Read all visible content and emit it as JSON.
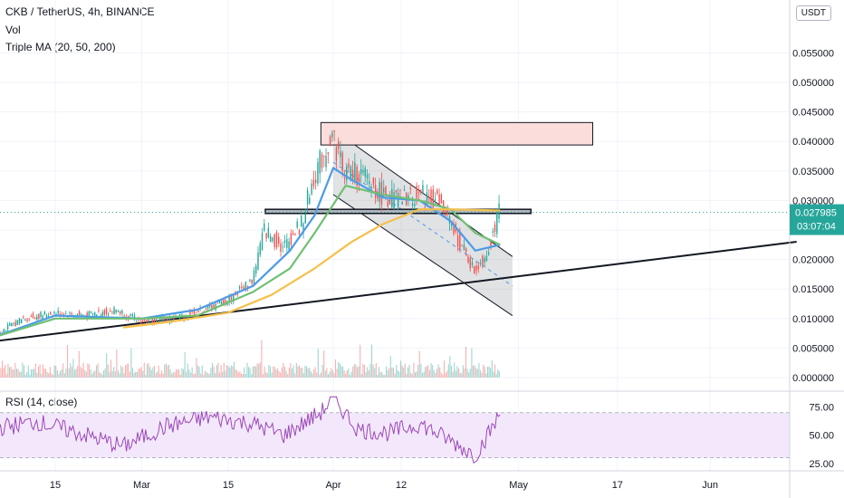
{
  "header": {
    "symbol_line": "CKB / TetherUS, 4h, BINANCE",
    "vol_label": "Vol",
    "ma_label": "Triple MA (20, 50, 200)"
  },
  "currency_button": "USDT",
  "price_badge": {
    "price": "0.027985",
    "countdown": "03:07:04"
  },
  "rsi_label": "RSI (14, close)",
  "colors": {
    "up": "#26a69a",
    "down": "#ef5350",
    "ma20": "#4c9be8",
    "ma50": "#6fbf73",
    "ma200": "#f5c04a",
    "rsi": "#9c47b8",
    "rsi_band": "#f3e8fb",
    "resistance": "#fbdedc"
  },
  "chart_data": [
    {
      "type": "line",
      "title": "CKB / TetherUS, 4h, BINANCE",
      "x_axis_labels": [
        "15",
        "Mar",
        "15",
        "Apr",
        "12",
        "May",
        "17",
        "Jun"
      ],
      "y_ticks": [
        "0.000000",
        "0.005000",
        "0.010000",
        "0.015000",
        "0.020000",
        "0.025000",
        "0.030000",
        "0.035000",
        "0.040000",
        "0.045000",
        "0.050000",
        "0.055000"
      ],
      "ylim": [
        0,
        0.057
      ],
      "last_price": 0.027985,
      "series": [
        {
          "name": "Price",
          "x": [
            "Feb 4",
            "Feb 10",
            "Feb 15",
            "Feb 20",
            "Feb 25",
            "Mar 1",
            "Mar 6",
            "Mar 10",
            "Mar 15",
            "Mar 19",
            "Mar 21",
            "Mar 24",
            "Mar 27",
            "Mar 29",
            "Apr 1",
            "Apr 3",
            "Apr 6",
            "Apr 9",
            "Apr 12",
            "Apr 15",
            "Apr 18",
            "Apr 20",
            "Apr 22",
            "Apr 24",
            "Apr 26",
            "Apr 28"
          ],
          "values": [
            0.0065,
            0.01,
            0.011,
            0.0105,
            0.0115,
            0.0095,
            0.01,
            0.011,
            0.013,
            0.0165,
            0.025,
            0.022,
            0.026,
            0.034,
            0.041,
            0.035,
            0.034,
            0.031,
            0.03,
            0.031,
            0.03,
            0.026,
            0.022,
            0.018,
            0.021,
            0.028
          ]
        },
        {
          "name": "MA20",
          "x": [
            "Feb 4",
            "Feb 15",
            "Mar 1",
            "Mar 10",
            "Mar 19",
            "Mar 25",
            "Mar 29",
            "Apr 1",
            "Apr 4",
            "Apr 9",
            "Apr 15",
            "Apr 20",
            "Apr 24",
            "Apr 28"
          ],
          "values": [
            0.0065,
            0.0105,
            0.01,
            0.0115,
            0.0155,
            0.0215,
            0.0275,
            0.0355,
            0.0335,
            0.0305,
            0.03,
            0.0265,
            0.0215,
            0.0225
          ]
        },
        {
          "name": "MA50",
          "x": [
            "Feb 4",
            "Feb 15",
            "Mar 1",
            "Mar 10",
            "Mar 19",
            "Mar 25",
            "Mar 29",
            "Apr 3",
            "Apr 9",
            "Apr 15",
            "Apr 20",
            "Apr 24",
            "Apr 28"
          ],
          "values": [
            0.0065,
            0.01,
            0.01,
            0.0105,
            0.0145,
            0.0185,
            0.0245,
            0.0325,
            0.031,
            0.03,
            0.0285,
            0.0245,
            0.0225
          ]
        },
        {
          "name": "MA200",
          "x": [
            "Feb 26",
            "Mar 6",
            "Mar 15",
            "Mar 22",
            "Mar 29",
            "Apr 4",
            "Apr 9",
            "Apr 15",
            "Apr 20",
            "Apr 28"
          ],
          "values": [
            0.0085,
            0.0095,
            0.011,
            0.014,
            0.0185,
            0.023,
            0.026,
            0.0285,
            0.0285,
            0.0283
          ]
        }
      ],
      "annotations": {
        "resistance_zone": {
          "x": [
            "Mar 30",
            "May 13"
          ],
          "y": [
            0.0394,
            0.0432
          ]
        },
        "support_line": {
          "x": [
            "Feb 4",
            "Jun 15"
          ],
          "y": [
            0.006,
            0.023
          ]
        },
        "horizontal_level": {
          "x": [
            "Mar 21",
            "May 3"
          ],
          "y": [
            0.0278,
            0.0285
          ]
        },
        "falling_channel": {
          "upper": {
            "x": [
              "Apr 1",
              "Apr 30"
            ],
            "y": [
              0.042,
              0.0205
            ]
          },
          "lower": {
            "x": [
              "Apr 1",
              "Apr 30"
            ],
            "y": [
              0.031,
              0.0105
            ]
          }
        }
      }
    },
    {
      "type": "bar",
      "title": "Vol",
      "x_range": [
        "Feb 4",
        "Apr 28"
      ],
      "values_sample_peaks": [
        0.007,
        0.005,
        0.006,
        0.006,
        0.007
      ]
    },
    {
      "type": "line",
      "title": "RSI (14, close)",
      "y_ticks": [
        "25.00",
        "50.00",
        "75.00"
      ],
      "ylim": [
        20,
        85
      ],
      "band": [
        30,
        70
      ],
      "series": [
        {
          "name": "RSI",
          "x": [
            "Feb 4",
            "Feb 12",
            "Feb 20",
            "Feb 26",
            "Mar 5",
            "Mar 12",
            "Mar 19",
            "Mar 24",
            "Mar 30",
            "Apr 1",
            "Apr 5",
            "Apr 10",
            "Apr 15",
            "Apr 20",
            "Apr 24",
            "Apr 28"
          ],
          "values": [
            55,
            62,
            50,
            40,
            58,
            66,
            60,
            50,
            70,
            83,
            55,
            52,
            60,
            45,
            32,
            68
          ]
        }
      ]
    }
  ]
}
